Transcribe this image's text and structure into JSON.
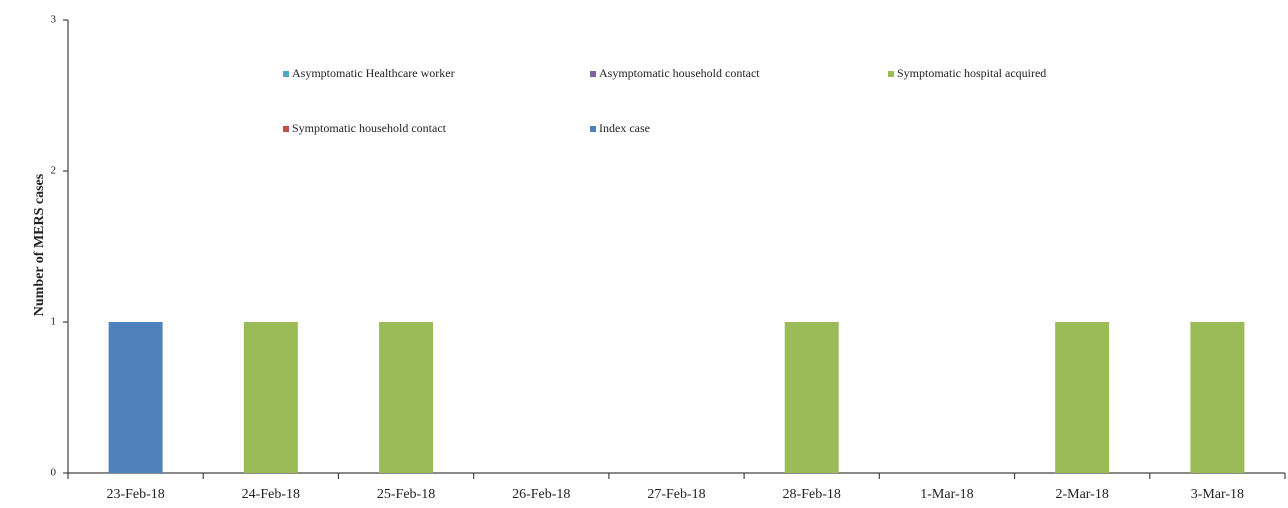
{
  "chart_data": {
    "type": "stacked_bar",
    "y_label": "Number of MERS cases",
    "categories": [
      "23-Feb-18",
      "24-Feb-18",
      "25-Feb-18",
      "26-Feb-18",
      "27-Feb-18",
      "28-Feb-18",
      "1-Mar-18",
      "2-Mar-18",
      "3-Mar-18"
    ],
    "series": [
      {
        "name": "Asymptomatic Healthcare worker",
        "color": "#4bacc6",
        "values": [
          0,
          0,
          0,
          0,
          0,
          0,
          0,
          0,
          0
        ]
      },
      {
        "name": "Asymptomatic household contact",
        "color": "#8064a2",
        "values": [
          0,
          0,
          0,
          0,
          0,
          0,
          0,
          0,
          0
        ]
      },
      {
        "name": "Symptomatic hospital acquired",
        "color": "#9bbb59",
        "values": [
          0,
          1,
          1,
          0,
          0,
          1,
          0,
          1,
          1
        ]
      },
      {
        "name": "Symptomatic household contact",
        "color": "#c0504d",
        "values": [
          0,
          0,
          0,
          0,
          0,
          0,
          0,
          0,
          0
        ]
      },
      {
        "name": "Index case",
        "color": "#4f81bd",
        "values": [
          1,
          0,
          0,
          0,
          0,
          0,
          0,
          0,
          0
        ]
      }
    ],
    "ylim": [
      0,
      3
    ],
    "yticks": [
      0,
      1,
      2,
      3
    ],
    "grid": false,
    "legend": "top"
  }
}
